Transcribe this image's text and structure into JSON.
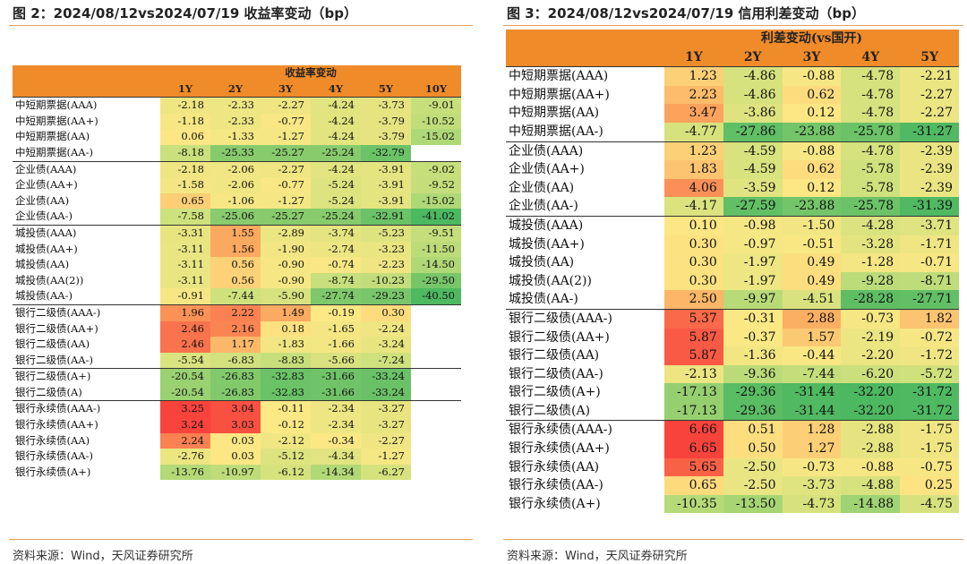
{
  "left": {
    "title": "图 2：2024/08/12vs2024/07/19 收益率变动（bp）",
    "header": "收益率变动",
    "columns": [
      "1Y",
      "2Y",
      "3Y",
      "4Y",
      "5Y",
      "10Y"
    ],
    "groups": [
      {
        "rows": [
          {
            "label": "中短期票据(AAA)",
            "values": [
              "-2.18",
              "-2.33",
              "-2.27",
              "-4.24",
              "-3.73",
              "-9.01"
            ]
          },
          {
            "label": "中短期票据(AA+)",
            "values": [
              "-1.18",
              "-2.33",
              "-0.77",
              "-4.24",
              "-3.79",
              "-10.52"
            ]
          },
          {
            "label": "中短期票据(AA)",
            "values": [
              "0.06",
              "-1.33",
              "-1.27",
              "-4.24",
              "-3.79",
              "-15.02"
            ]
          },
          {
            "label": "中短期票据(AA-)",
            "values": [
              "-8.18",
              "-25.33",
              "-25.27",
              "-25.24",
              "-32.79",
              ""
            ]
          }
        ]
      },
      {
        "rows": [
          {
            "label": "企业债(AAA)",
            "values": [
              "-2.18",
              "-2.06",
              "-2.27",
              "-4.24",
              "-3.91",
              "-9.02"
            ]
          },
          {
            "label": "企业债(AA+)",
            "values": [
              "-1.58",
              "-2.06",
              "-0.77",
              "-5.24",
              "-3.91",
              "-9.52"
            ]
          },
          {
            "label": "企业债(AA)",
            "values": [
              "0.65",
              "-1.06",
              "-1.27",
              "-5.24",
              "-3.91",
              "-15.02"
            ]
          },
          {
            "label": "企业债(AA-)",
            "values": [
              "-7.58",
              "-25.06",
              "-25.27",
              "-25.24",
              "-32.91",
              "-41.02"
            ]
          }
        ]
      },
      {
        "rows": [
          {
            "label": "城投债(AAA)",
            "values": [
              "-3.31",
              "1.55",
              "-2.89",
              "-3.74",
              "-5.23",
              "-9.51"
            ]
          },
          {
            "label": "城投债(AA+)",
            "values": [
              "-3.11",
              "1.56",
              "-1.90",
              "-2.74",
              "-3.23",
              "-11.50"
            ]
          },
          {
            "label": "城投债(AA)",
            "values": [
              "-3.11",
              "0.56",
              "-0.90",
              "-0.74",
              "-2.23",
              "-14.50"
            ]
          },
          {
            "label": "城投债(AA(2))",
            "values": [
              "-3.11",
              "0.56",
              "-0.90",
              "-8.74",
              "-10.23",
              "-29.50"
            ]
          },
          {
            "label": "城投债(AA-)",
            "values": [
              "-0.91",
              "-7.44",
              "-5.90",
              "-27.74",
              "-29.23",
              "-40.50"
            ]
          }
        ]
      },
      {
        "rows": [
          {
            "label": "银行二级债(AAA-)",
            "values": [
              "1.96",
              "2.22",
              "1.49",
              "-0.19",
              "0.30",
              ""
            ]
          },
          {
            "label": "银行二级债(AA+)",
            "values": [
              "2.46",
              "2.16",
              "0.18",
              "-1.65",
              "-2.24",
              ""
            ]
          },
          {
            "label": "银行二级债(AA)",
            "values": [
              "2.46",
              "1.17",
              "-1.83",
              "-1.66",
              "-3.24",
              ""
            ]
          },
          {
            "label": "银行二级债(AA-)",
            "values": [
              "-5.54",
              "-6.83",
              "-8.83",
              "-5.66",
              "-7.24",
              ""
            ]
          }
        ]
      },
      {
        "rows": [
          {
            "label": "银行二级债(A+)",
            "values": [
              "-20.54",
              "-26.83",
              "-32.83",
              "-31.66",
              "-33.24",
              ""
            ]
          },
          {
            "label": "银行二级债(A)",
            "values": [
              "-20.54",
              "-26.83",
              "-32.83",
              "-31.66",
              "-33.24",
              ""
            ]
          }
        ]
      },
      {
        "rows": [
          {
            "label": "银行永续债(AAA-)",
            "values": [
              "3.25",
              "3.04",
              "-0.11",
              "-2.34",
              "-3.27",
              ""
            ]
          },
          {
            "label": "银行永续债(AA+)",
            "values": [
              "3.24",
              "3.03",
              "-0.12",
              "-2.34",
              "-3.27",
              ""
            ]
          },
          {
            "label": "银行永续债(AA)",
            "values": [
              "2.24",
              "0.03",
              "-2.12",
              "-0.34",
              "-2.27",
              ""
            ]
          },
          {
            "label": "银行永续债(AA-)",
            "values": [
              "-2.76",
              "0.03",
              "-5.12",
              "-4.34",
              "-1.27",
              ""
            ]
          },
          {
            "label": "银行永续债(A+)",
            "values": [
              "-13.76",
              "-10.97",
              "-6.12",
              "-14.34",
              "-6.27",
              ""
            ]
          }
        ]
      }
    ],
    "source": "资料来源：Wind，天风证券研究所"
  },
  "right": {
    "title": "图 3：2024/08/12vs2024/07/19 信用利差变动（bp）",
    "header": "利差变动(vs国开)",
    "columns": [
      "1Y",
      "2Y",
      "3Y",
      "4Y",
      "5Y"
    ],
    "groups": [
      {
        "rows": [
          {
            "label": "中短期票据(AAA)",
            "values": [
              "1.23",
              "-4.86",
              "-0.88",
              "-4.78",
              "-2.21"
            ]
          },
          {
            "label": "中短期票据(AA+)",
            "values": [
              "2.23",
              "-4.86",
              "0.62",
              "-4.78",
              "-2.27"
            ]
          },
          {
            "label": "中短期票据(AA)",
            "values": [
              "3.47",
              "-3.86",
              "0.12",
              "-4.78",
              "-2.27"
            ]
          },
          {
            "label": "中短期票据(AA-)",
            "values": [
              "-4.77",
              "-27.86",
              "-23.88",
              "-25.78",
              "-31.27"
            ]
          }
        ]
      },
      {
        "rows": [
          {
            "label": "企业债(AAA)",
            "values": [
              "1.23",
              "-4.59",
              "-0.88",
              "-4.78",
              "-2.39"
            ]
          },
          {
            "label": "企业债(AA+)",
            "values": [
              "1.83",
              "-4.59",
              "0.62",
              "-5.78",
              "-2.39"
            ]
          },
          {
            "label": "企业债(AA)",
            "values": [
              "4.06",
              "-3.59",
              "0.12",
              "-5.78",
              "-2.39"
            ]
          },
          {
            "label": "企业债(AA-)",
            "values": [
              "-4.17",
              "-27.59",
              "-23.88",
              "-25.78",
              "-31.39"
            ]
          }
        ]
      },
      {
        "rows": [
          {
            "label": "城投债(AAA)",
            "values": [
              "0.10",
              "-0.98",
              "-1.50",
              "-4.28",
              "-3.71"
            ]
          },
          {
            "label": "城投债(AA+)",
            "values": [
              "0.30",
              "-0.97",
              "-0.51",
              "-3.28",
              "-1.71"
            ]
          },
          {
            "label": "城投债(AA)",
            "values": [
              "0.30",
              "-1.97",
              "0.49",
              "-1.28",
              "-0.71"
            ]
          },
          {
            "label": "城投债(AA(2))",
            "values": [
              "0.30",
              "-1.97",
              "0.49",
              "-9.28",
              "-8.71"
            ]
          },
          {
            "label": "城投债(AA-)",
            "values": [
              "2.50",
              "-9.97",
              "-4.51",
              "-28.28",
              "-27.71"
            ]
          }
        ]
      },
      {
        "rows": [
          {
            "label": "银行二级债(AAA-)",
            "values": [
              "5.37",
              "-0.31",
              "2.88",
              "-0.73",
              "1.82"
            ]
          },
          {
            "label": "银行二级债(AA+)",
            "values": [
              "5.87",
              "-0.37",
              "1.57",
              "-2.19",
              "-0.72"
            ]
          },
          {
            "label": "银行二级债(AA)",
            "values": [
              "5.87",
              "-1.36",
              "-0.44",
              "-2.20",
              "-1.72"
            ]
          },
          {
            "label": "银行二级债(AA-)",
            "values": [
              "-2.13",
              "-9.36",
              "-7.44",
              "-6.20",
              "-5.72"
            ]
          },
          {
            "label": "银行二级债(A+)",
            "values": [
              "-17.13",
              "-29.36",
              "-31.44",
              "-32.20",
              "-31.72"
            ]
          },
          {
            "label": "银行二级债(A)",
            "values": [
              "-17.13",
              "-29.36",
              "-31.44",
              "-32.20",
              "-31.72"
            ]
          }
        ]
      },
      {
        "rows": [
          {
            "label": "银行永续债(AAA-)",
            "values": [
              "6.66",
              "0.51",
              "1.28",
              "-2.88",
              "-1.75"
            ]
          },
          {
            "label": "银行永续债(AA+)",
            "values": [
              "6.65",
              "0.50",
              "1.27",
              "-2.88",
              "-1.75"
            ]
          },
          {
            "label": "银行永续债(AA)",
            "values": [
              "5.65",
              "-2.50",
              "-0.73",
              "-0.88",
              "-0.75"
            ]
          },
          {
            "label": "银行永续债(AA-)",
            "values": [
              "0.65",
              "-2.50",
              "-3.73",
              "-4.88",
              "0.25"
            ]
          },
          {
            "label": "银行永续债(A+)",
            "values": [
              "-10.35",
              "-13.50",
              "-4.73",
              "-14.88",
              "-4.75"
            ]
          }
        ]
      }
    ],
    "source": "资料来源：Wind，天风证券研究所"
  },
  "colors": {
    "header_bg": "#f08b2a",
    "rule": "#e0a060",
    "scale_red": "#f8433d",
    "scale_orange": "#fba65e",
    "scale_yellow": "#fde885",
    "scale_green_light": "#c9e07c",
    "scale_green": "#4cb860"
  }
}
